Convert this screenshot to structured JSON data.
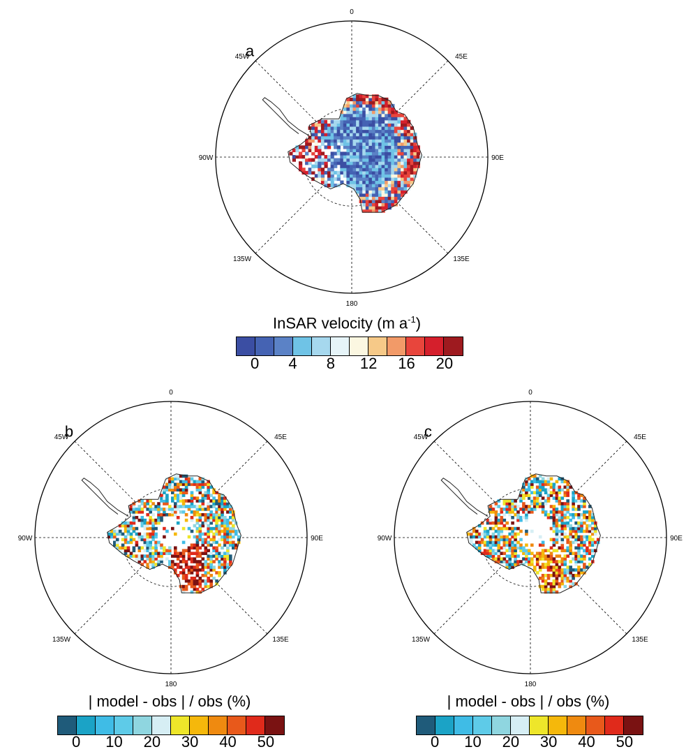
{
  "panels": [
    {
      "label": "a",
      "field": "InSAR velocity",
      "lon_labels": [
        "0",
        "45E",
        "90E",
        "135E",
        "180",
        "135W",
        "90W",
        "45W"
      ]
    },
    {
      "label": "b",
      "field": "| model - obs | / obs (%)",
      "lon_labels": [
        "0",
        "45E",
        "90E",
        "135E",
        "180",
        "135W",
        "90W",
        "45W"
      ]
    },
    {
      "label": "c",
      "field": "| model - obs | / obs (%)",
      "lon_labels": [
        "0",
        "45E",
        "90E",
        "135E",
        "180",
        "135W",
        "90W",
        "45W"
      ]
    }
  ],
  "colorbars": {
    "velocity": {
      "title_main": "InSAR velocity (m a",
      "title_sup": "-1",
      "title_end": ")",
      "ticks": [
        "0",
        "4",
        "8",
        "12",
        "16",
        "20"
      ],
      "colors": [
        "#3b4ea3",
        "#4563b3",
        "#5b82c6",
        "#6fc3e6",
        "#a6d8ee",
        "#e6f4f8",
        "#fbf7e1",
        "#f6c988",
        "#f29a68",
        "#e8453c",
        "#d51f2c",
        "#9e1a1f"
      ]
    },
    "error_b": {
      "title": "| model - obs | / obs (%)",
      "ticks": [
        "0",
        "10",
        "20",
        "30",
        "40",
        "50"
      ],
      "colors": [
        "#1f5b7a",
        "#1ba3c6",
        "#3fbce6",
        "#5ecbe8",
        "#8fd6e0",
        "#d6eef4",
        "#eee62a",
        "#f5b80b",
        "#ef8a10",
        "#e8591b",
        "#e02a1b",
        "#7a1212"
      ]
    },
    "error_c": {
      "title": "| model - obs | / obs (%)",
      "ticks": [
        "0",
        "10",
        "20",
        "30",
        "40",
        "50"
      ],
      "colors": [
        "#1f5b7a",
        "#1ba3c6",
        "#3fbce6",
        "#5ecbe8",
        "#8fd6e0",
        "#d6eef4",
        "#eee62a",
        "#f5b80b",
        "#ef8a10",
        "#e8591b",
        "#e02a1b",
        "#7a1212"
      ]
    }
  }
}
